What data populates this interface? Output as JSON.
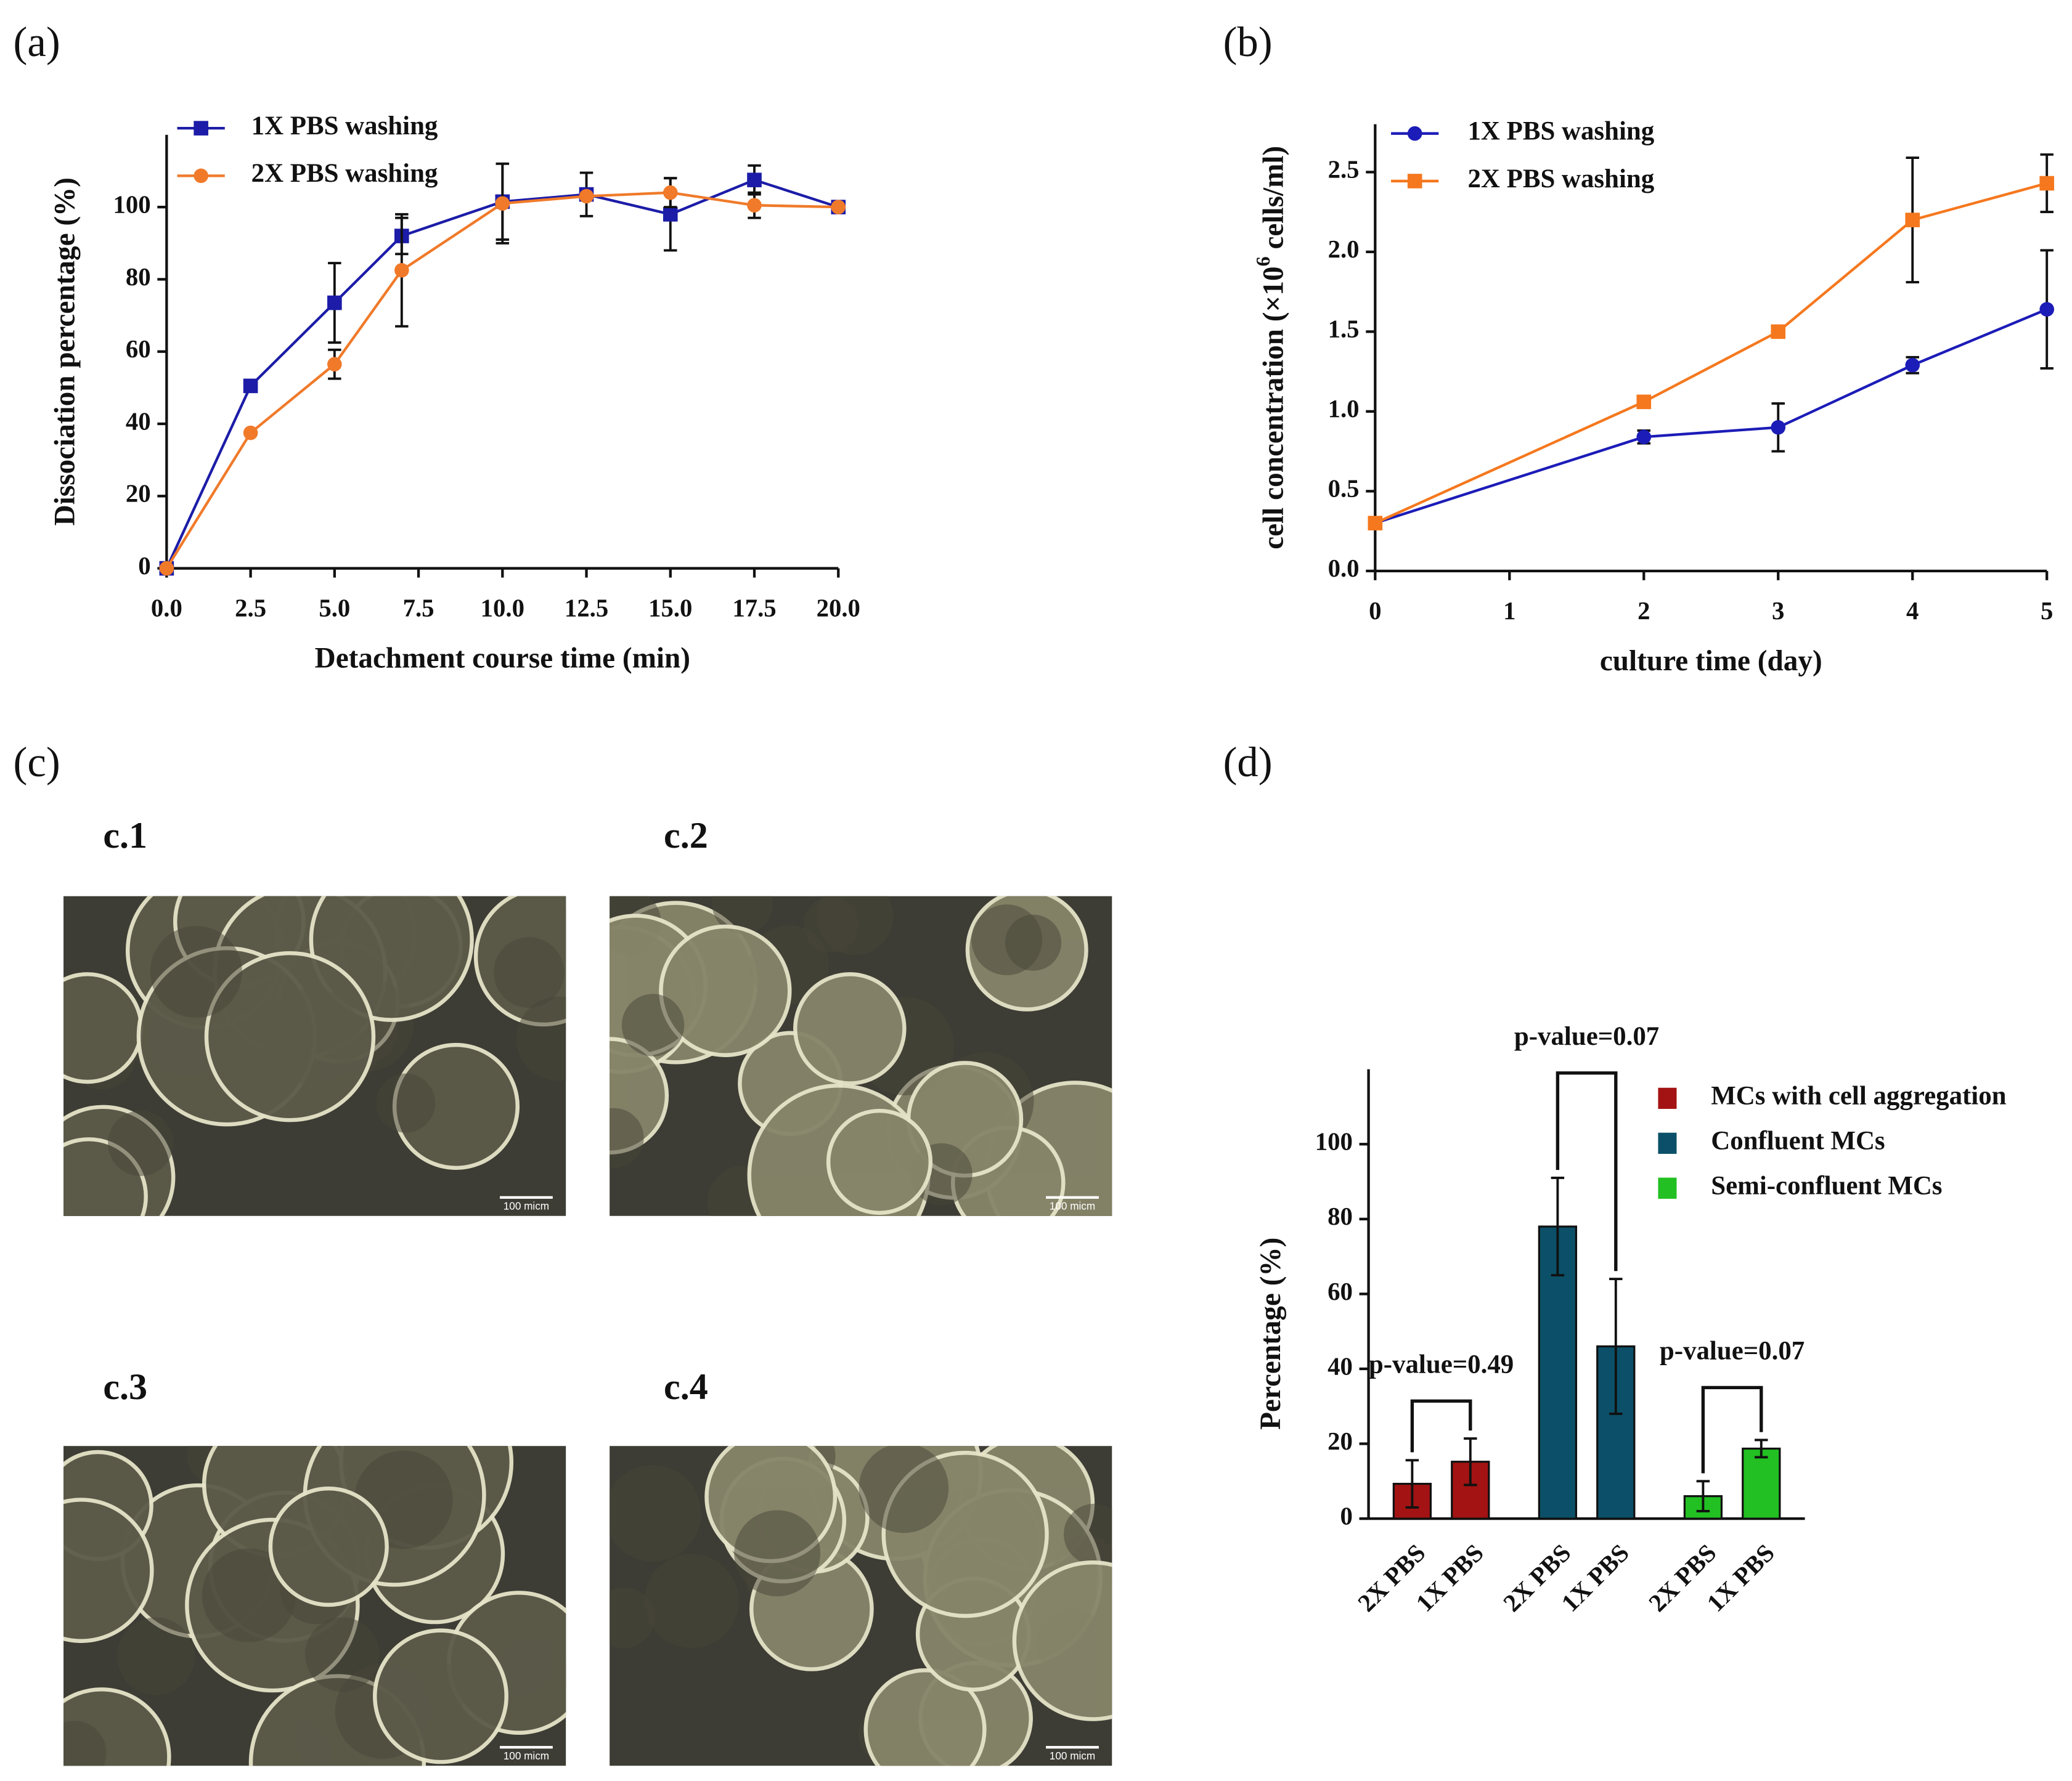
{
  "chart_data": [
    {
      "type": "line",
      "panel_label": "(a)",
      "xlabel": "Detachment course time (min)",
      "ylabel": "Dissociation percentage (%)",
      "x": [
        0,
        2.5,
        5,
        7,
        10,
        12.5,
        15,
        17.5,
        20
      ],
      "series": [
        {
          "name": "1X PBS washing",
          "color": "#1c1ca8",
          "marker": "square",
          "values": [
            0,
            50.5,
            73.5,
            92,
            101.5,
            103.5,
            98,
            107.5,
            100
          ],
          "errors": [
            0,
            0,
            11,
            5,
            10.5,
            6,
            10,
            4,
            0
          ]
        },
        {
          "name": "2X PBS washing",
          "color": "#f07a2a",
          "marker": "circle",
          "values": [
            0,
            37.5,
            56.5,
            82.5,
            101,
            103,
            104,
            100.5,
            100
          ],
          "errors": [
            0,
            0,
            4,
            15.5,
            11,
            0,
            4,
            3.5,
            0
          ]
        }
      ],
      "xlim": [
        0,
        20
      ],
      "xticks": [
        {
          "value": 0,
          "label": "0.0"
        },
        2.5,
        {
          "value": 5,
          "label": "5.0"
        },
        {
          "value": 7.5,
          "label": "7.5"
        },
        {
          "value": 10,
          "label": "10.0"
        },
        12.5,
        {
          "value": 15,
          "label": "15.0"
        },
        17.5,
        {
          "value": 20,
          "label": "20.0"
        }
      ],
      "ylim": [
        0,
        120
      ],
      "yticks": [
        0,
        20,
        40,
        60,
        80,
        100
      ]
    },
    {
      "type": "line",
      "panel_label": "(b)",
      "xlabel": "culture time (day)",
      "ylabel": "cell concentration  (×10",
      "ylabel_sup": "6",
      "ylabel_end": " cells/ml)",
      "x": [
        0,
        2,
        3,
        4,
        5
      ],
      "series": [
        {
          "name": "1X PBS washing",
          "color": "#1c1cb8",
          "marker": "circle",
          "values": [
            0.3,
            0.84,
            0.9,
            1.29,
            1.64
          ],
          "errors": [
            0,
            0.04,
            0.15,
            0.05,
            0.37
          ]
        },
        {
          "name": "2X PBS washing",
          "color": "#f5781e",
          "marker": "square",
          "values": [
            0.3,
            1.06,
            1.5,
            2.2,
            2.43
          ],
          "errors": [
            0,
            0,
            0,
            0.39,
            0.18
          ]
        }
      ],
      "xlim": [
        0,
        5
      ],
      "xticks": [
        0,
        1,
        2,
        3,
        4,
        5
      ],
      "ylim": [
        0,
        2.8
      ],
      "yticks": [
        {
          "value": 0,
          "label": "0.0"
        },
        0.5,
        {
          "value": 1,
          "label": "1.0"
        },
        1.5,
        {
          "value": 2,
          "label": "2.0"
        },
        2.5
      ]
    },
    {
      "type": "bar",
      "panel_label": "(d)",
      "ylabel": "Percentage (%)",
      "categories": [
        "2X PBS",
        "1X PBS"
      ],
      "series": [
        {
          "name": "MCs with cell aggregation",
          "color": "#a31313",
          "values": [
            9.3,
            15.2
          ],
          "errors": [
            6.3,
            6.2
          ]
        },
        {
          "name": "Confluent MCs",
          "color": "#0b5068",
          "values": [
            78,
            46
          ],
          "errors": [
            13,
            18
          ]
        },
        {
          "name": "Semi-confluent MCs",
          "color": "#22c022",
          "values": [
            6,
            18.7
          ],
          "errors": [
            4,
            2.3
          ]
        }
      ],
      "annotations": [
        "p-value=0.49",
        "p-value=0.07",
        "p-value=0.07"
      ],
      "ylim": [
        0,
        120
      ],
      "yticks": [
        0,
        20,
        40,
        60,
        80,
        100
      ]
    }
  ],
  "micrographs": {
    "panel_label": "(c)",
    "images": [
      {
        "label": "c.1",
        "scale_bar": "100 micm"
      },
      {
        "label": "c.2",
        "scale_bar": "100 micm"
      },
      {
        "label": "c.3",
        "scale_bar": "100 micm"
      },
      {
        "label": "c.4",
        "scale_bar": "100 micm"
      }
    ]
  }
}
